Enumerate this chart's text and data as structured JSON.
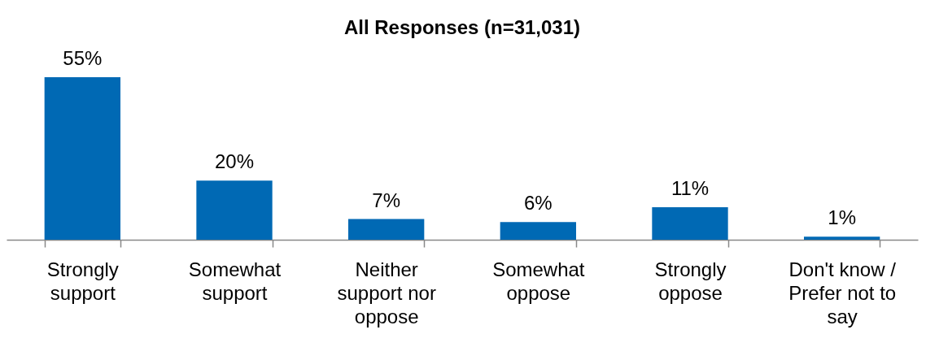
{
  "chart_data": {
    "type": "bar",
    "title": "All Responses (n=31,031)",
    "categories": [
      "Strongly support",
      "Somewhat support",
      "Neither support nor oppose",
      "Somewhat oppose",
      "Strongly oppose",
      "Don't know / Prefer not to say"
    ],
    "values": [
      55,
      20,
      7,
      6,
      11,
      1
    ],
    "color": "#0069b4",
    "value_labels": [
      "55%",
      "20%",
      "7%",
      "6%",
      "11%",
      "1%"
    ]
  }
}
